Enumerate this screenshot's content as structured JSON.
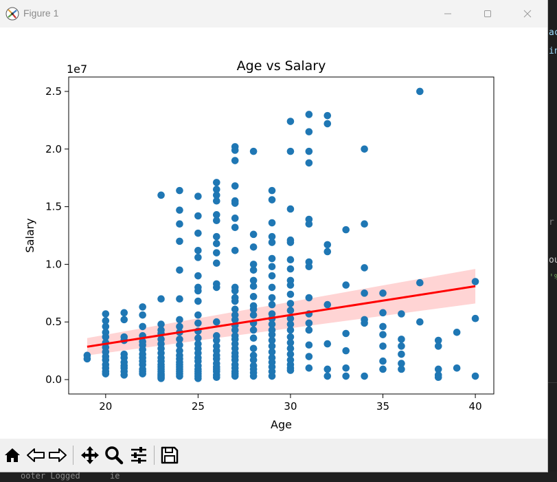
{
  "window": {
    "title": "Figure 1",
    "minimize_icon": "minimize-icon",
    "maximize_icon": "maximize-icon",
    "close_icon": "close-icon"
  },
  "toolbar": {
    "buttons": [
      {
        "name": "home-button",
        "icon": "home-icon"
      },
      {
        "name": "back-button",
        "icon": "back-arrow-icon"
      },
      {
        "name": "forward-button",
        "icon": "forward-arrow-icon"
      },
      {
        "name": "pan-button",
        "icon": "move-icon"
      },
      {
        "name": "zoom-button",
        "icon": "magnifier-icon"
      },
      {
        "name": "configure-subplots-button",
        "icon": "sliders-icon"
      },
      {
        "name": "save-button",
        "icon": "floppy-disk-icon"
      }
    ]
  },
  "background": {
    "code_fragments": [
      "ac",
      "in",
      "r",
      "ou",
      "'%"
    ],
    "status_text": "ooter Logged      ie"
  },
  "chart_data": {
    "type": "scatter",
    "title": "Age vs Salary",
    "xlabel": "Age",
    "ylabel": "Salary",
    "offset_label": "1e7",
    "xlim": [
      18.0,
      41.0
    ],
    "ylim": [
      -1250000,
      26250000
    ],
    "xticks": [
      20,
      25,
      30,
      35,
      40
    ],
    "xtick_labels": [
      "20",
      "25",
      "30",
      "35",
      "40"
    ],
    "yticks": [
      0,
      5000000,
      10000000,
      15000000,
      20000000,
      25000000
    ],
    "ytick_labels": [
      "0.0",
      "0.5",
      "1.0",
      "1.5",
      "2.0",
      "2.5"
    ],
    "grid": false,
    "point_color": "#1f77b4",
    "series": [
      {
        "kind": "points",
        "x": [
          19,
          19,
          20,
          20,
          20,
          20,
          20,
          20,
          20,
          20,
          20,
          20,
          20,
          20,
          20,
          20,
          21,
          21,
          21,
          21,
          21,
          21,
          21,
          21,
          21,
          21,
          21,
          22,
          22,
          22,
          22,
          22,
          22,
          22,
          22,
          22,
          22,
          22,
          22,
          22,
          22,
          23,
          23,
          23,
          23,
          23,
          23,
          23,
          23,
          23,
          23,
          23,
          23,
          23,
          23,
          23,
          23,
          23,
          23,
          23,
          23,
          24,
          24,
          24,
          24,
          24,
          24,
          24,
          24,
          24,
          24,
          24,
          24,
          24,
          24,
          24,
          24,
          24,
          24,
          24,
          24,
          24,
          25,
          25,
          25,
          25,
          25,
          25,
          25,
          25,
          25,
          25,
          25,
          25,
          25,
          25,
          25,
          25,
          25,
          25,
          25,
          25,
          25,
          25,
          25,
          25,
          26,
          26,
          26,
          26,
          26,
          26,
          26,
          26,
          26,
          26,
          26,
          26,
          26,
          26,
          26,
          26,
          26,
          26,
          26,
          26,
          26,
          26,
          26,
          26,
          26,
          27,
          27,
          27,
          27,
          27,
          27,
          27,
          27,
          27,
          27,
          27,
          27,
          27,
          27,
          27,
          27,
          27,
          27,
          27,
          27,
          27,
          27,
          27,
          27,
          27,
          27,
          27,
          27,
          27,
          27,
          28,
          28,
          28,
          28,
          28,
          28,
          28,
          28,
          28,
          28,
          28,
          28,
          28,
          28,
          28,
          28,
          28,
          28,
          28,
          28,
          28,
          29,
          29,
          29,
          29,
          29,
          29,
          29,
          29,
          29,
          29,
          29,
          29,
          29,
          29,
          29,
          29,
          29,
          29,
          29,
          29,
          29,
          29,
          29,
          29,
          30,
          30,
          30,
          30,
          30,
          30,
          30,
          30,
          30,
          30,
          30,
          30,
          30,
          30,
          30,
          30,
          30,
          30,
          30,
          30,
          30,
          30,
          30,
          31,
          31,
          31,
          31,
          31,
          31,
          31,
          31,
          31,
          31,
          31,
          31,
          31,
          31,
          31,
          32,
          32,
          32,
          32,
          32,
          32,
          32,
          32,
          33,
          33,
          33,
          33,
          33,
          33,
          34,
          34,
          34,
          34,
          34,
          34,
          34,
          35,
          35,
          35,
          35,
          35,
          35,
          35,
          36,
          36,
          36,
          36,
          36,
          36,
          37,
          37,
          37,
          38,
          38,
          38,
          38,
          38,
          39,
          39,
          40,
          40,
          40
        ],
        "y": [
          2100000,
          1800000,
          5700000,
          5100000,
          4600000,
          4100000,
          3700000,
          3200000,
          2800000,
          2400000,
          2000000,
          1700000,
          1300000,
          1000000,
          700000,
          500000,
          5800000,
          5200000,
          3700000,
          3400000,
          2200000,
          1900000,
          1500000,
          1200000,
          1000000,
          700000,
          400000,
          6300000,
          5600000,
          4600000,
          3800000,
          3300000,
          3000000,
          2600000,
          2200000,
          1900000,
          1600000,
          1300000,
          900000,
          700000,
          500000,
          16000000,
          7000000,
          4800000,
          4300000,
          4000000,
          3500000,
          3100000,
          2700000,
          2300000,
          1900000,
          1600000,
          1300000,
          1100000,
          900000,
          700000,
          500000,
          400000,
          300000,
          200000,
          100000,
          16400000,
          14700000,
          13500000,
          12000000,
          9500000,
          7000000,
          5200000,
          4600000,
          4100000,
          3500000,
          3000000,
          2500000,
          2100000,
          1800000,
          1500000,
          1300000,
          1100000,
          900000,
          700000,
          500000,
          300000,
          15900000,
          14200000,
          12700000,
          11200000,
          10600000,
          9000000,
          8000000,
          7700000,
          6800000,
          5600000,
          4900000,
          4200000,
          3600000,
          3100000,
          2700000,
          2300000,
          1900000,
          1600000,
          1200000,
          900000,
          700000,
          500000,
          300000,
          100000,
          17100000,
          16500000,
          16000000,
          15500000,
          14300000,
          13800000,
          12400000,
          11800000,
          11000000,
          10100000,
          8300000,
          8000000,
          5000000,
          3800000,
          3400000,
          2900000,
          2500000,
          2100000,
          1800000,
          1400000,
          1100000,
          900000,
          700000,
          400000,
          200000,
          20200000,
          19900000,
          19000000,
          16800000,
          15500000,
          15300000,
          14000000,
          13200000,
          11200000,
          8000000,
          7700000,
          7100000,
          6800000,
          6100000,
          5600000,
          5200000,
          4700000,
          4300000,
          3800000,
          3500000,
          3100000,
          2700000,
          2300000,
          2000000,
          1700000,
          1300000,
          1000000,
          700000,
          500000,
          300000,
          19800000,
          12600000,
          11500000,
          10000000,
          9500000,
          8600000,
          8100000,
          7200000,
          6400000,
          6100000,
          5600000,
          4900000,
          4300000,
          3600000,
          2700000,
          2100000,
          1700000,
          1200000,
          900000,
          600000,
          300000,
          16400000,
          15600000,
          13600000,
          12400000,
          11900000,
          10500000,
          9800000,
          9000000,
          8000000,
          7100000,
          6500000,
          5700000,
          5300000,
          4800000,
          4300000,
          3900000,
          3400000,
          2900000,
          2400000,
          1900000,
          1500000,
          1100000,
          700000,
          300000,
          22400000,
          19800000,
          14800000,
          12100000,
          11900000,
          10400000,
          9600000,
          8600000,
          8200000,
          7400000,
          6600000,
          6000000,
          5300000,
          4800000,
          4300000,
          3700000,
          3200000,
          2700000,
          2200000,
          1700000,
          1300000,
          1000000,
          800000,
          23000000,
          21500000,
          19800000,
          18800000,
          13900000,
          13500000,
          10200000,
          9800000,
          7100000,
          5700000,
          4900000,
          4300000,
          3000000,
          2000000,
          1000000,
          22900000,
          22200000,
          11700000,
          11100000,
          6500000,
          3100000,
          900000,
          300000,
          13000000,
          8200000,
          4000000,
          2500000,
          1000000,
          300000,
          20000000,
          13500000,
          9700000,
          7500000,
          5200000,
          4900000,
          300000,
          7500000,
          5800000,
          4600000,
          3900000,
          2900000,
          1600000,
          900000,
          5700000,
          3500000,
          2900000,
          2200000,
          1400000,
          900000,
          25000000,
          8400000,
          5000000,
          3400000,
          2900000,
          900000,
          400000,
          200000,
          4100000,
          1000000,
          8500000,
          5300000,
          300000
        ]
      },
      {
        "kind": "regression",
        "color": "#ff0000",
        "x": [
          19,
          40
        ],
        "y": [
          2850000,
          8100000
        ],
        "ci_color": "#ffcccc",
        "ci_lower": [
          2100000,
          6600000
        ],
        "ci_upper": [
          3600000,
          9600000
        ]
      }
    ]
  }
}
